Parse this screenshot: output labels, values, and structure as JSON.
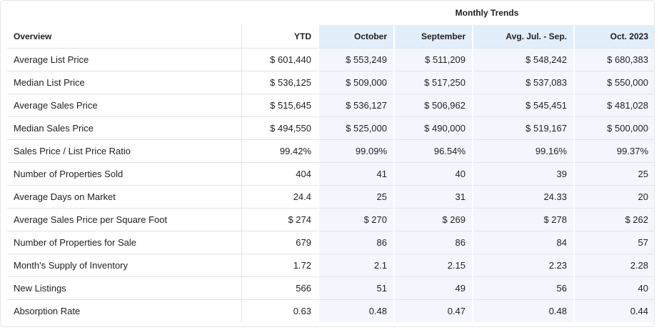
{
  "header": {
    "group_label": "Monthly Trends"
  },
  "columns": {
    "overview": "Overview",
    "ytd": "YTD",
    "october": "October",
    "september": "September",
    "avg": "Avg. Jul. - Sep.",
    "prev_year": "Oct. 2023"
  },
  "rows": [
    {
      "label": "Average List Price",
      "ytd": "$ 601,440",
      "october": "$ 553,249",
      "september": "$ 511,209",
      "avg": "$ 548,242",
      "prev_year": "$ 680,383"
    },
    {
      "label": "Median List Price",
      "ytd": "$ 536,125",
      "october": "$ 509,000",
      "september": "$ 517,250",
      "avg": "$ 537,083",
      "prev_year": "$ 550,000"
    },
    {
      "label": "Average Sales Price",
      "ytd": "$ 515,645",
      "october": "$ 536,127",
      "september": "$ 506,962",
      "avg": "$ 545,451",
      "prev_year": "$ 481,028"
    },
    {
      "label": "Median Sales Price",
      "ytd": "$ 494,550",
      "october": "$ 525,000",
      "september": "$ 490,000",
      "avg": "$ 519,167",
      "prev_year": "$ 500,000"
    },
    {
      "label": "Sales Price / List Price Ratio",
      "ytd": "99.42%",
      "october": "99.09%",
      "september": "96.54%",
      "avg": "99.16%",
      "prev_year": "99.37%"
    },
    {
      "label": "Number of Properties Sold",
      "ytd": "404",
      "october": "41",
      "september": "40",
      "avg": "39",
      "prev_year": "25"
    },
    {
      "label": "Average Days on Market",
      "ytd": "24.4",
      "october": "25",
      "september": "31",
      "avg": "24.33",
      "prev_year": "20"
    },
    {
      "label": "Average Sales Price per Square Foot",
      "ytd": "$ 274",
      "october": "$ 270",
      "september": "$ 269",
      "avg": "$ 278",
      "prev_year": "$ 262"
    },
    {
      "label": "Number of Properties for Sale",
      "ytd": "679",
      "october": "86",
      "september": "86",
      "avg": "84",
      "prev_year": "57"
    },
    {
      "label": "Month's Supply of Inventory",
      "ytd": "1.72",
      "october": "2.1",
      "september": "2.15",
      "avg": "2.23",
      "prev_year": "2.28"
    },
    {
      "label": "New Listings",
      "ytd": "566",
      "october": "51",
      "september": "49",
      "avg": "56",
      "prev_year": "40"
    },
    {
      "label": "Absorption Rate",
      "ytd": "0.63",
      "october": "0.48",
      "september": "0.47",
      "avg": "0.48",
      "prev_year": "0.44"
    }
  ],
  "colors": {
    "trend_header_bg": "#e3eefb",
    "trend_cell_bg": "#f3f7fd",
    "border": "#e3e3e3"
  }
}
